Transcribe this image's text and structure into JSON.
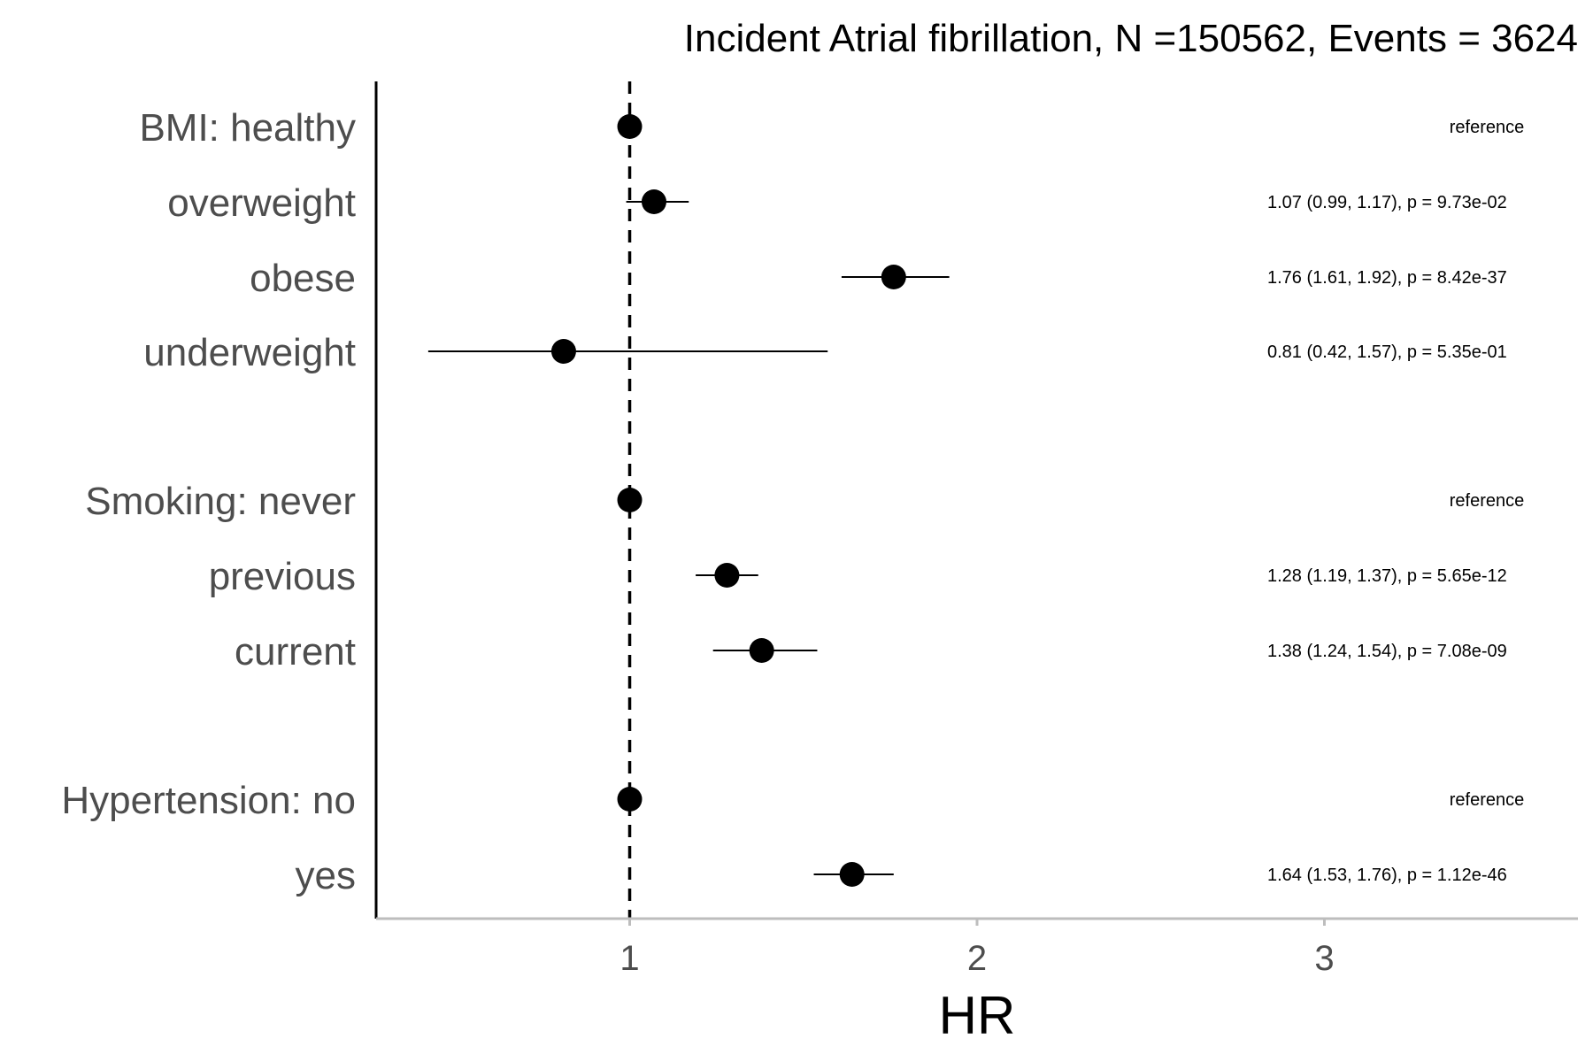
{
  "chart_data": {
    "type": "forest",
    "title": "Incident Atrial fibrillation, N =150562, Events = 3624",
    "xlabel": "HR",
    "xlim": [
      0.27,
      3.73
    ],
    "xticks": [
      1,
      2,
      3
    ],
    "xtick_labels": [
      "1",
      "2",
      "3"
    ],
    "reference_line": 1,
    "rows": [
      {
        "label": "BMI: healthy",
        "hr": 1.0,
        "lo": null,
        "hi": null,
        "annotation": "reference"
      },
      {
        "label": "overweight",
        "hr": 1.07,
        "lo": 0.99,
        "hi": 1.17,
        "annotation": "1.07 (0.99, 1.17), p = 9.73e-02"
      },
      {
        "label": "obese",
        "hr": 1.76,
        "lo": 1.61,
        "hi": 1.92,
        "annotation": "1.76 (1.61, 1.92), p = 8.42e-37"
      },
      {
        "label": "underweight",
        "hr": 0.81,
        "lo": 0.42,
        "hi": 1.57,
        "annotation": "0.81 (0.42, 1.57), p = 5.35e-01"
      },
      {
        "label": "Smoking: never",
        "hr": 1.0,
        "lo": null,
        "hi": null,
        "annotation": "reference"
      },
      {
        "label": "previous",
        "hr": 1.28,
        "lo": 1.19,
        "hi": 1.37,
        "annotation": "1.28 (1.19, 1.37), p = 5.65e-12"
      },
      {
        "label": "current",
        "hr": 1.38,
        "lo": 1.24,
        "hi": 1.54,
        "annotation": "1.38 (1.24, 1.54), p = 7.08e-09"
      },
      {
        "label": "Hypertension: no",
        "hr": 1.0,
        "lo": null,
        "hi": null,
        "annotation": "reference"
      },
      {
        "label": "yes",
        "hr": 1.64,
        "lo": 1.53,
        "hi": 1.76,
        "annotation": "1.64 (1.53, 1.76), p = 1.12e-46"
      }
    ]
  }
}
